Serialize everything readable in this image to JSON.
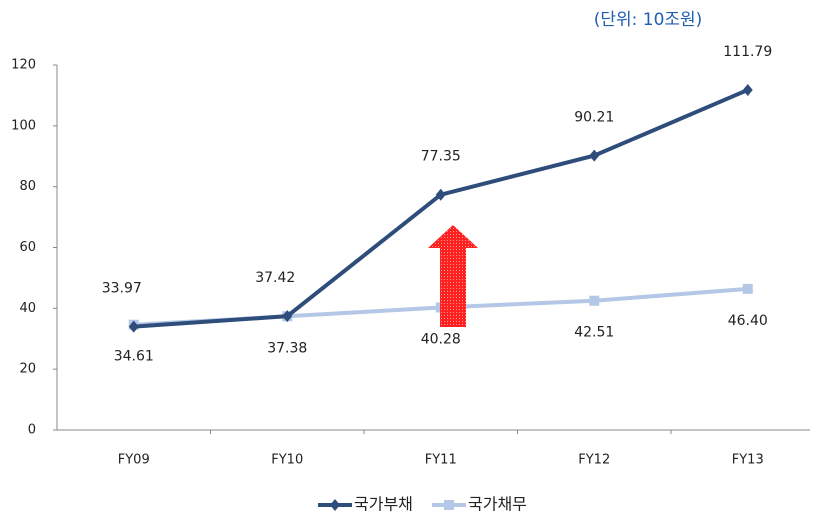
{
  "chart_data": {
    "type": "line",
    "subtitle": "(단위: 10조원)",
    "categories": [
      "FY09",
      "FY10",
      "FY11",
      "FY12",
      "FY13"
    ],
    "series": [
      {
        "name": "국가부채",
        "color": "#2e4d7b",
        "marker": "diamond",
        "values": [
          33.97,
          37.42,
          77.35,
          90.21,
          111.79
        ],
        "value_labels": [
          "33.97",
          "37.42",
          "77.35",
          "90.21",
          "111.79"
        ]
      },
      {
        "name": "국가채무",
        "color": "#b4c7e7",
        "marker": "square",
        "values": [
          34.61,
          37.38,
          40.28,
          42.51,
          46.4
        ],
        "value_labels": [
          "34.61",
          "37.38",
          "40.28",
          "42.51",
          "46.40"
        ]
      }
    ],
    "ylim": [
      0,
      120
    ],
    "yticks": [
      0,
      20,
      40,
      60,
      80,
      100,
      120
    ],
    "legend": "bottom"
  }
}
